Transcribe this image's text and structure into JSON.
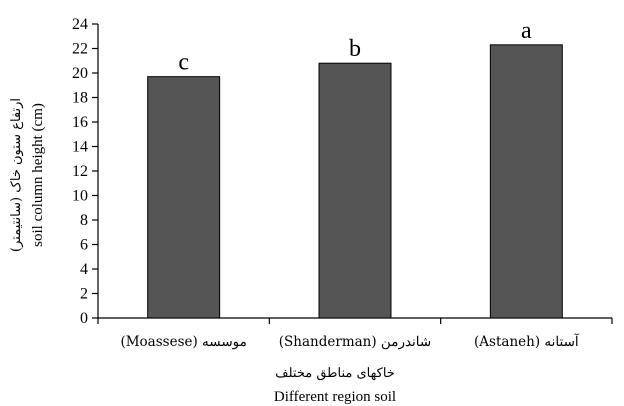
{
  "chart_data": {
    "type": "bar",
    "categories": [
      "موسسه (Moassese)",
      "شاندرمن (Shanderman)",
      "آستانه (Astaneh)"
    ],
    "values": [
      19.7,
      20.8,
      22.3
    ],
    "data_labels": [
      "c",
      "b",
      "a"
    ],
    "xlabel_fa": "خاکهای مناطق مختلف",
    "xlabel": "Different region soil",
    "ylabel_fa": "ارتفاع ستون خاک (سانتیمتر)",
    "ylabel": "soil column height (cm)",
    "ylim": [
      0,
      24
    ],
    "y_ticks": [
      0,
      2,
      4,
      6,
      8,
      10,
      12,
      14,
      16,
      18,
      20,
      22,
      24
    ],
    "grid": false,
    "legend": "none",
    "bar_color": "#555555",
    "bar_edge_color": "#000000"
  }
}
